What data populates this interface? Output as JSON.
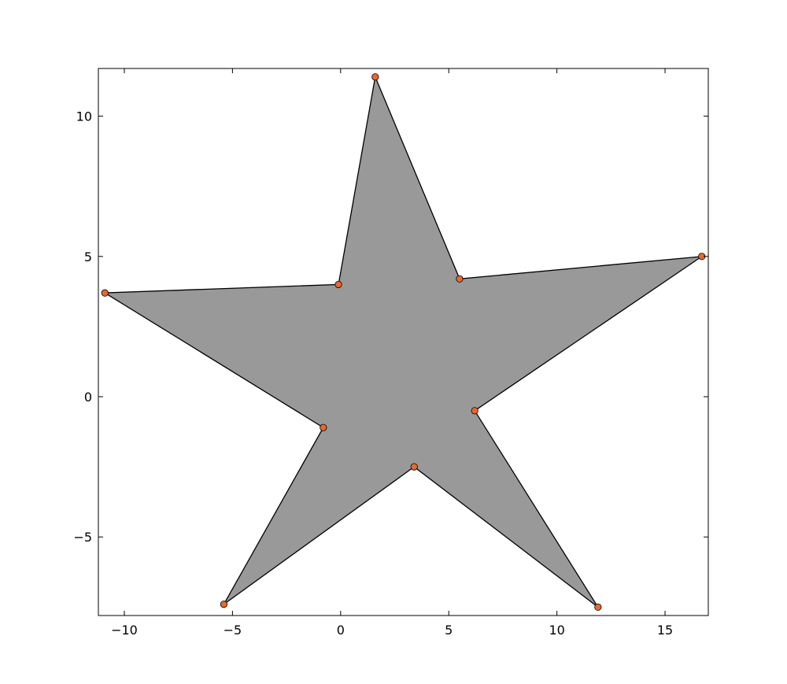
{
  "chart_data": {
    "type": "scatter",
    "title": "",
    "xlabel": "",
    "ylabel": "",
    "xlim": [
      -11.2,
      17
    ],
    "ylim": [
      -7.8,
      11.7
    ],
    "x_ticks": [
      -10,
      -5,
      0,
      5,
      10,
      15
    ],
    "x_tick_labels": [
      "−10",
      "−5",
      "0",
      "5",
      "10",
      "15"
    ],
    "y_ticks": [
      -5,
      0,
      5,
      10
    ],
    "y_tick_labels": [
      "−5",
      "0",
      "5",
      "10"
    ],
    "grid": false,
    "series": [
      {
        "points": [
          {
            "x": 1.6,
            "y": 11.4
          },
          {
            "x": 5.5,
            "y": 4.2
          },
          {
            "x": 16.7,
            "y": 5.0
          },
          {
            "x": 6.2,
            "y": -0.5
          },
          {
            "x": 11.9,
            "y": -7.5
          },
          {
            "x": 3.4,
            "y": -2.5
          },
          {
            "x": -5.4,
            "y": -7.4
          },
          {
            "x": -0.8,
            "y": -1.1
          },
          {
            "x": -10.9,
            "y": 3.7
          },
          {
            "x": -0.1,
            "y": 4.0
          }
        ],
        "fill_color": "#999999",
        "edge_color": "#000000",
        "marker_color": "#e8682e"
      }
    ]
  }
}
